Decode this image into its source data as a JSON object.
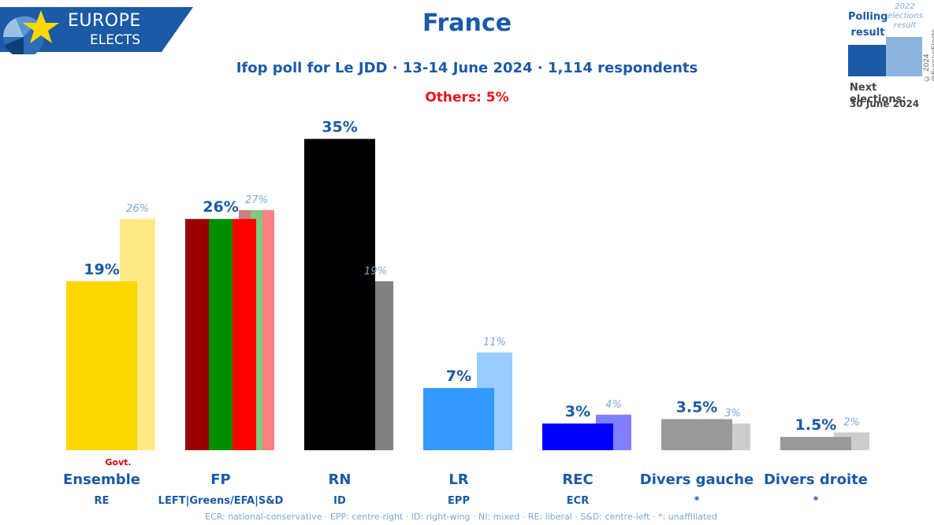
{
  "header": {
    "logo_line1": "EUROPE",
    "logo_line2": "ELECTS",
    "title": "France",
    "subtitle": "Ifop poll for Le JDD · 13-14 June 2024 · 1,114 respondents",
    "others": "Others: 5%"
  },
  "legend": {
    "polling": "Polling result",
    "previous": "2022 elections result",
    "next_label": "Next elections:",
    "next_date": "30 June 2024",
    "copyright": "© 2024 @EuropeElects"
  },
  "colors": {
    "brand_blue": "#1a5aa6",
    "others_red": "#e8141b",
    "previous_label": "#7aa7d6"
  },
  "chart_data": {
    "type": "bar",
    "ylim": [
      0,
      40
    ],
    "parties": [
      {
        "name": "Ensemble",
        "group": "RE",
        "value": 19,
        "value_label": "19%",
        "previous": 26,
        "previous_label": "26%",
        "color": "#fed700",
        "prev_color": "#ffe985",
        "note": "Govt."
      },
      {
        "name": "FP",
        "group": "LEFT|Greens/EFA|S&D",
        "value": 26,
        "value_label": "26%",
        "previous": 27,
        "previous_label": "27%",
        "stripes": [
          "#990000",
          "#008f00",
          "#ff0000"
        ],
        "prev_stripes": [
          "#cc8080",
          "#80c780",
          "#ff8080"
        ]
      },
      {
        "name": "RN",
        "group": "ID",
        "value": 35,
        "value_label": "35%",
        "previous": 19,
        "previous_label": "19%",
        "color": "#000000",
        "prev_color": "#808080"
      },
      {
        "name": "LR",
        "group": "EPP",
        "value": 7,
        "value_label": "7%",
        "previous": 11,
        "previous_label": "11%",
        "color": "#3399ff",
        "prev_color": "#99ccff"
      },
      {
        "name": "REC",
        "group": "ECR",
        "value": 3,
        "value_label": "3%",
        "previous": 4,
        "previous_label": "4%",
        "color": "#0000ff",
        "prev_color": "#8080ff"
      },
      {
        "name": "Divers gauche",
        "group": "*",
        "value": 3.5,
        "value_label": "3.5%",
        "previous": 3,
        "previous_label": "3%",
        "color": "#999999",
        "prev_color": "#cccccc"
      },
      {
        "name": "Divers droite",
        "group": "*",
        "value": 1.5,
        "value_label": "1.5%",
        "previous": 2,
        "previous_label": "2%",
        "color": "#999999",
        "prev_color": "#cccccc"
      }
    ]
  },
  "footnote": "ECR: national-conservative · EPP: centre-right · ID: right-wing · NI: mixed · RE: liberal · S&D: centre-left · *: unaffiliated"
}
